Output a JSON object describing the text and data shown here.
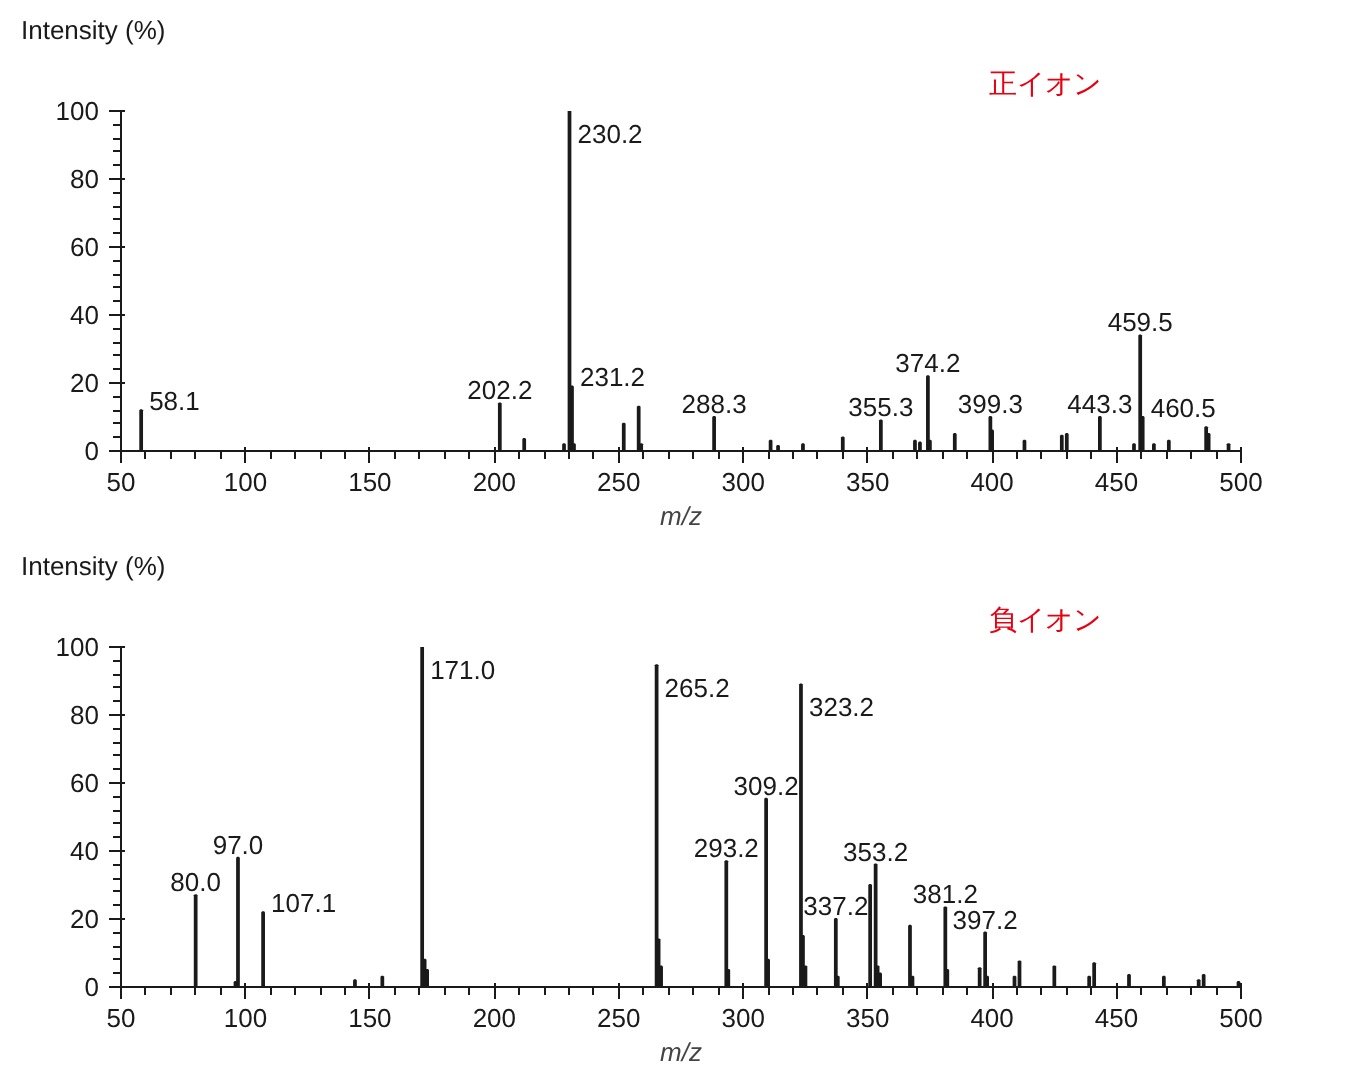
{
  "chart_data": [
    {
      "type": "bar",
      "title": "正イオン",
      "ylabel": "Intensity (%)",
      "xlabel": "m/z",
      "color": "#1a1a1a",
      "grid": false,
      "x": [
        58.1,
        202.2,
        212,
        228,
        230.2,
        231.2,
        232,
        252,
        258,
        259,
        288.3,
        311,
        314,
        324,
        340,
        355.3,
        369,
        371,
        374.2,
        375,
        385,
        399.3,
        400,
        413,
        428,
        430,
        443.3,
        457,
        459.5,
        460.5,
        465,
        471,
        486,
        487,
        495
      ],
      "values": [
        12,
        14,
        3.5,
        2,
        100,
        19,
        2,
        8,
        13,
        2,
        10,
        3,
        1.5,
        2,
        4,
        9,
        3,
        2.5,
        22,
        3,
        5,
        10,
        6,
        3,
        4.5,
        5,
        10,
        2,
        34,
        10,
        2,
        3,
        7,
        5,
        2
      ],
      "xlim": [
        50,
        500
      ],
      "xticks": [
        50,
        100,
        150,
        200,
        250,
        300,
        350,
        400,
        450,
        500
      ],
      "ylim": [
        0,
        100
      ],
      "yticks": [
        0,
        20,
        40,
        60,
        80,
        100
      ],
      "annotations": [
        {
          "text": "58.1",
          "x": 58.1,
          "y": 12
        },
        {
          "text": "202.2",
          "x": 202.2,
          "y": 14
        },
        {
          "text": "230.2",
          "x": 230.2,
          "y": 100
        },
        {
          "text": "231.2",
          "x": 231.2,
          "y": 19
        },
        {
          "text": "288.3",
          "x": 288.3,
          "y": 10
        },
        {
          "text": "355.3",
          "x": 355.3,
          "y": 9
        },
        {
          "text": "374.2",
          "x": 374.2,
          "y": 22
        },
        {
          "text": "399.3",
          "x": 399.3,
          "y": 10
        },
        {
          "text": "443.3",
          "x": 443.3,
          "y": 10
        },
        {
          "text": "459.5",
          "x": 459.5,
          "y": 34
        },
        {
          "text": "460.5",
          "x": 460.5,
          "y": 10
        }
      ]
    },
    {
      "type": "bar",
      "title": "負イオン",
      "ylabel": "Intensity (%)",
      "xlabel": "m/z",
      "color": "#1a1a1a",
      "grid": false,
      "x": [
        80.0,
        96,
        97.0,
        107.1,
        144,
        155,
        171.0,
        172,
        173,
        265.2,
        266,
        267,
        293.2,
        294,
        309.2,
        310,
        323.2,
        324,
        325,
        337.2,
        338,
        351,
        353.2,
        354,
        355,
        367,
        368,
        381.2,
        382,
        395,
        397.2,
        398,
        409,
        411,
        425,
        439,
        441,
        455,
        469,
        483,
        485,
        499
      ],
      "values": [
        27,
        1.5,
        38,
        22,
        2,
        3,
        100,
        8,
        5,
        94.6,
        14,
        6,
        37,
        5,
        55.4,
        8,
        89,
        15,
        6,
        20,
        3,
        30,
        36,
        6,
        4,
        18,
        3,
        23.4,
        5,
        5.5,
        16,
        3,
        3,
        7.5,
        6,
        3,
        7,
        3.5,
        3,
        2,
        3.5,
        1.5
      ],
      "xlim": [
        50,
        500
      ],
      "xticks": [
        50,
        100,
        150,
        200,
        250,
        300,
        350,
        400,
        450,
        500
      ],
      "ylim": [
        0,
        100
      ],
      "yticks": [
        0,
        20,
        40,
        60,
        80,
        100
      ],
      "annotations": [
        {
          "text": "80.0",
          "x": 80.0,
          "y": 27
        },
        {
          "text": "97.0",
          "x": 97.0,
          "y": 38
        },
        {
          "text": "107.1",
          "x": 107.1,
          "y": 22
        },
        {
          "text": "171.0",
          "x": 171.0,
          "y": 100
        },
        {
          "text": "265.2",
          "x": 265.2,
          "y": 94.6
        },
        {
          "text": "293.2",
          "x": 293.2,
          "y": 37
        },
        {
          "text": "309.2",
          "x": 309.2,
          "y": 55.4
        },
        {
          "text": "323.2",
          "x": 323.2,
          "y": 89
        },
        {
          "text": "337.2",
          "x": 337.2,
          "y": 20
        },
        {
          "text": "353.2",
          "x": 353.2,
          "y": 36
        },
        {
          "text": "381.2",
          "x": 381.2,
          "y": 23.4
        },
        {
          "text": "397.2",
          "x": 397.2,
          "y": 16
        }
      ]
    }
  ]
}
